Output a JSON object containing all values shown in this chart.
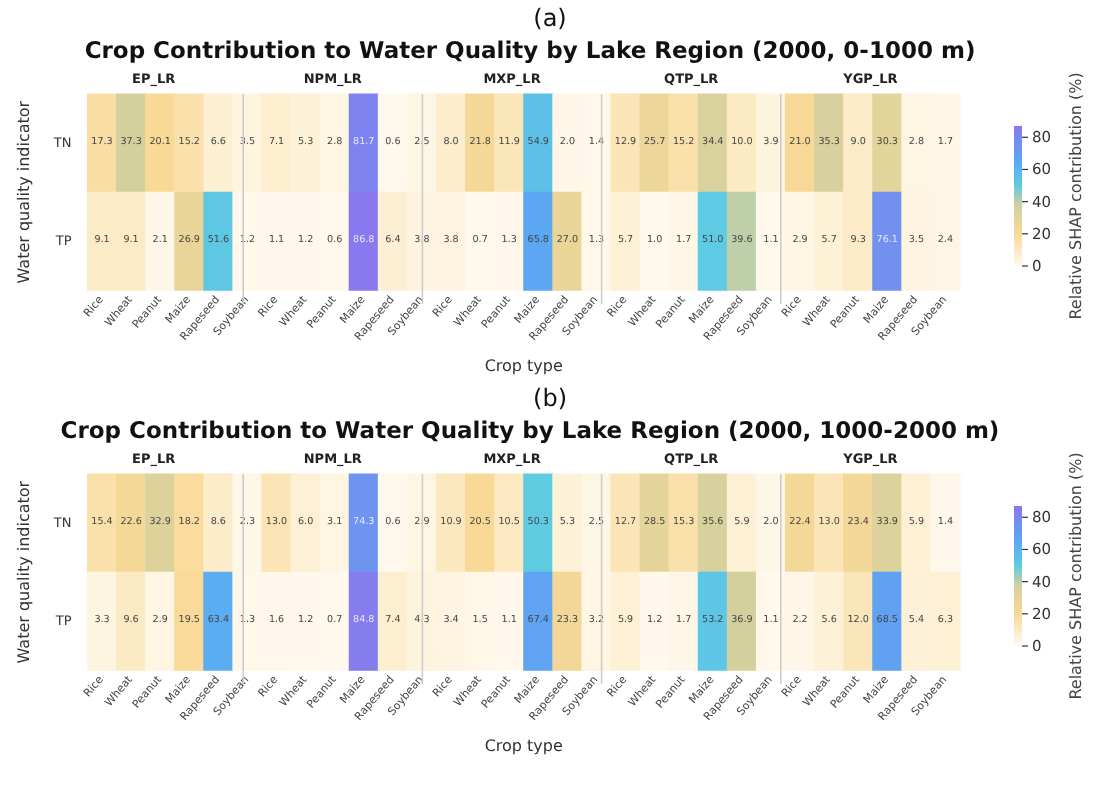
{
  "chart_data": [
    {
      "type": "heatmap",
      "annotations": [
        "(a)",
        "Crop Contribution to Water Quality by Lake Region (2000, 0-1000 m)",
        "EP_LR",
        "NPM_LR",
        "MXP_LR",
        "QTP_LR",
        "YGP_LR"
      ],
      "xlabel": "Crop type",
      "ylabel": "Water quality indicator",
      "clabel": "Relative SHAP contribution (%)",
      "categories": [
        "Rice",
        "Wheat",
        "Peanut",
        "Maize",
        "Rapeseed",
        "Soybean",
        "Rice",
        "Wheat",
        "Peanut",
        "Maize",
        "Rapeseed",
        "Soybean",
        "Rice",
        "Wheat",
        "Peanut",
        "Maize",
        "Rapeseed",
        "Soybean",
        "Rice",
        "Wheat",
        "Peanut",
        "Maize",
        "Rapeseed",
        "Soybean",
        "Rice",
        "Wheat",
        "Peanut",
        "Maize",
        "Rapeseed",
        "Soybean"
      ],
      "y_categories": [
        "TN",
        "TP"
      ],
      "cells": [
        [
          17.3,
          37.3,
          20.1,
          15.2,
          6.6,
          3.5,
          7.1,
          5.3,
          2.8,
          81.7,
          0.6,
          2.5,
          8.0,
          21.8,
          11.9,
          54.9,
          2.0,
          1.4,
          12.9,
          25.7,
          15.2,
          34.4,
          10.0,
          3.9,
          21.0,
          35.3,
          9.0,
          30.3,
          2.8,
          1.7
        ],
        [
          9.1,
          9.1,
          2.1,
          26.9,
          51.6,
          1.2,
          1.1,
          1.2,
          0.6,
          86.8,
          6.4,
          3.8,
          3.8,
          0.7,
          1.3,
          65.8,
          27.0,
          1.3,
          5.7,
          1.0,
          1.7,
          51.0,
          39.6,
          1.1,
          2.9,
          5.7,
          9.3,
          76.1,
          3.5,
          2.4
        ]
      ],
      "cell_labels": [
        [
          "17.3",
          "37.3",
          "20.1",
          "15.2",
          "6.6",
          "3.5",
          "7.1",
          "5.3",
          "2.8",
          "81.7",
          "0.6",
          "2.5",
          "8.0",
          "21.8",
          "11.9",
          "54.9",
          "2.0",
          "1.4",
          "12.9",
          "25.7",
          "15.2",
          "34.4",
          "10.0",
          "3.9",
          "21.0",
          "35.3",
          "9.0",
          "30.3",
          "2.8",
          "1.7"
        ],
        [
          "9.1",
          "9.1",
          "2.1",
          "26.9",
          "51.6",
          "1.2",
          "1.1",
          "1.2",
          "0.6",
          "86.8",
          "6.4",
          "3.8",
          "3.8",
          "0.7",
          "1.3",
          "65.8",
          "27.0",
          "1.3",
          "5.7",
          "1.0",
          "1.7",
          "51.0",
          "39.6",
          "1.1",
          "2.9",
          "5.7",
          "9.3",
          "76.1",
          "3.5",
          "2.4"
        ]
      ],
      "data_labels": true,
      "clim": [
        0,
        87
      ],
      "cticks": [
        0,
        20,
        40,
        60,
        80
      ]
    },
    {
      "type": "heatmap",
      "annotations": [
        "(b)",
        "Crop Contribution to Water Quality by Lake Region (2000, 1000-2000 m)",
        "EP_LR",
        "NPM_LR",
        "MXP_LR",
        "QTP_LR",
        "YGP_LR"
      ],
      "xlabel": "Crop type",
      "ylabel": "Water quality indicator",
      "clabel": "Relative SHAP contribution (%)",
      "categories": [
        "Rice",
        "Wheat",
        "Peanut",
        "Maize",
        "Rapeseed",
        "Soybean",
        "Rice",
        "Wheat",
        "Peanut",
        "Maize",
        "Rapeseed",
        "Soybean",
        "Rice",
        "Wheat",
        "Peanut",
        "Maize",
        "Rapeseed",
        "Soybean",
        "Rice",
        "Wheat",
        "Peanut",
        "Maize",
        "Rapeseed",
        "Soybean",
        "Rice",
        "Wheat",
        "Peanut",
        "Maize",
        "Rapeseed",
        "Soybean"
      ],
      "y_categories": [
        "TN",
        "TP"
      ],
      "cells": [
        [
          15.4,
          22.6,
          32.9,
          18.2,
          8.6,
          2.3,
          13.0,
          6.0,
          3.1,
          74.3,
          0.6,
          2.9,
          10.9,
          20.5,
          10.5,
          50.3,
          5.3,
          2.5,
          12.7,
          28.5,
          15.3,
          35.6,
          5.9,
          2.0,
          22.4,
          13.0,
          23.4,
          33.9,
          5.9,
          1.4
        ],
        [
          3.3,
          9.6,
          2.9,
          19.5,
          63.4,
          1.3,
          1.6,
          1.2,
          0.7,
          84.8,
          7.4,
          4.3,
          3.4,
          1.5,
          1.1,
          67.4,
          23.3,
          3.2,
          5.9,
          1.2,
          1.7,
          53.2,
          36.9,
          1.1,
          2.2,
          5.6,
          12.0,
          68.5,
          5.4,
          6.3
        ]
      ],
      "cell_labels": [
        [
          "15.4",
          "22.6",
          "32.9",
          "18.2",
          "8.6",
          "2.3",
          "13.0",
          "6.0",
          "3.1",
          "74.3",
          "0.6",
          "2.9",
          "10.9",
          "20.5",
          "10.5",
          "50.3",
          "5.3",
          "2.5",
          "12.7",
          "28.5",
          "15.3",
          "35.6",
          "5.9",
          "2.0",
          "22.4",
          "13.0",
          "23.4",
          "33.9",
          "5.9",
          "1.4"
        ],
        [
          "3.3",
          "9.6",
          "2.9",
          "19.5",
          "63.4",
          "1.3",
          "1.6",
          "1.2",
          "0.7",
          "84.8",
          "7.4",
          "4.3",
          "3.4",
          "1.5",
          "1.1",
          "67.4",
          "23.3",
          "3.2",
          "5.9",
          "1.2",
          "1.7",
          "53.2",
          "36.9",
          "1.1",
          "2.2",
          "5.6",
          "12.0",
          "68.5",
          "5.4",
          "6.3"
        ]
      ],
      "data_labels": true,
      "clim": [
        0,
        87
      ],
      "cticks": [
        0,
        20,
        40,
        60,
        80
      ]
    }
  ]
}
